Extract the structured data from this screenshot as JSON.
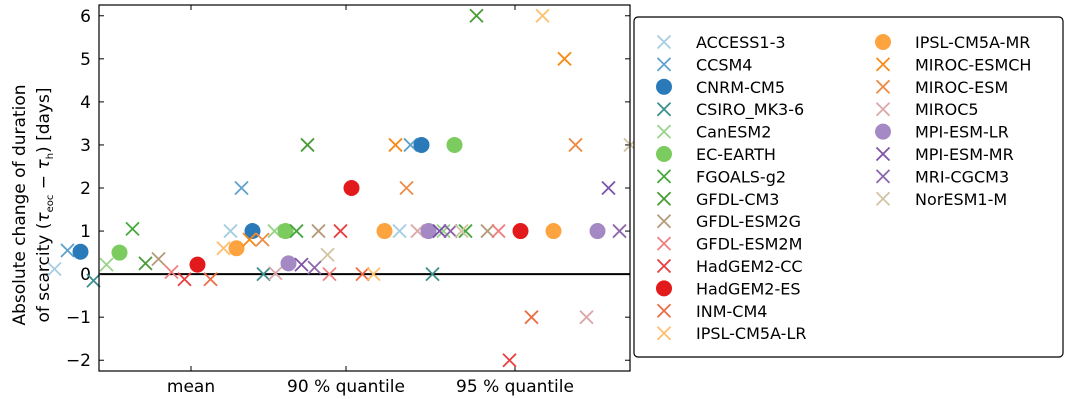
{
  "chart_data": {
    "type": "scatter",
    "title": "",
    "xlabel": "",
    "ylabel_line1": "Absolute change of duration",
    "ylabel_line2_prefix": "of scarcity (",
    "ylabel_tau": "τ",
    "ylabel_sub_eoc": "eoc",
    "ylabel_minus": " − ",
    "ylabel_sub_h": "h",
    "ylabel_line2_suffix": ") [days]",
    "categories": [
      "mean",
      "90 % quantile",
      "95 % quantile"
    ],
    "ylim": [
      -2.25,
      6.25
    ],
    "yticks": [
      "−2",
      "−1",
      "0",
      "1",
      "2",
      "3",
      "4",
      "5",
      "6"
    ],
    "ytick_values": [
      -2,
      -1,
      0,
      1,
      2,
      3,
      4,
      5,
      6
    ],
    "zero_line": 0,
    "grid": false,
    "legend_placement": "right",
    "series": [
      {
        "name": "ACCESS1-3",
        "color": "#a6cee3",
        "marker": "x",
        "values": [
          0.12,
          1.0,
          1.0
        ]
      },
      {
        "name": "CCSM4",
        "color": "#5fa2cc",
        "marker": "x",
        "values": [
          0.55,
          2.0,
          3.0
        ]
      },
      {
        "name": "CNRM-CM5",
        "color": "#2a7ab9",
        "marker": "o",
        "values": [
          0.52,
          1.0,
          3.0
        ]
      },
      {
        "name": "CSIRO_MK3-6",
        "color": "#3d8e8e",
        "marker": "x",
        "values": [
          -0.15,
          0.0,
          0.0
        ]
      },
      {
        "name": "CanESM2",
        "color": "#9ad48b",
        "marker": "x",
        "values": [
          0.22,
          1.0,
          1.0
        ]
      },
      {
        "name": "EC-EARTH",
        "color": "#7ccb5f",
        "marker": "o",
        "values": [
          0.5,
          1.0,
          3.0
        ]
      },
      {
        "name": "FGOALS-g2",
        "color": "#45a83c",
        "marker": "x",
        "values": [
          1.05,
          1.0,
          1.0
        ]
      },
      {
        "name": "GFDL-CM3",
        "color": "#4b9a38",
        "marker": "x",
        "values": [
          0.25,
          3.0,
          6.0
        ]
      },
      {
        "name": "GFDL-ESM2G",
        "color": "#b59a7b",
        "marker": "x",
        "values": [
          0.35,
          1.0,
          1.0
        ]
      },
      {
        "name": "GFDL-ESM2M",
        "color": "#f08080",
        "marker": "x",
        "values": [
          0.05,
          0.0,
          1.0
        ]
      },
      {
        "name": "HadGEM2-CC",
        "color": "#e84040",
        "marker": "x",
        "values": [
          -0.12,
          1.0,
          -2.0
        ]
      },
      {
        "name": "HadGEM2-ES",
        "color": "#e31a1c",
        "marker": "o",
        "values": [
          0.22,
          2.0,
          1.0
        ]
      },
      {
        "name": "INM-CM4",
        "color": "#ec6e45",
        "marker": "x",
        "values": [
          -0.12,
          0.0,
          -1.0
        ]
      },
      {
        "name": "IPSL-CM5A-LR",
        "color": "#fdbf6f",
        "marker": "x",
        "values": [
          0.6,
          0.0,
          6.0
        ]
      },
      {
        "name": "IPSL-CM5A-MR",
        "color": "#fda440",
        "marker": "o",
        "values": [
          0.6,
          1.0,
          1.0
        ]
      },
      {
        "name": "MIROC-ESMCH",
        "color": "#f88a18",
        "marker": "x",
        "values": [
          0.8,
          3.0,
          5.0
        ]
      },
      {
        "name": "MIROC-ESM",
        "color": "#ef8a45",
        "marker": "x",
        "values": [
          0.8,
          2.0,
          3.0
        ]
      },
      {
        "name": "MIROC5",
        "color": "#dba9a9",
        "marker": "x",
        "values": [
          0.02,
          1.0,
          -1.0
        ]
      },
      {
        "name": "MPI-ESM-LR",
        "color": "#a489c4",
        "marker": "o",
        "values": [
          0.25,
          1.0,
          1.0
        ]
      },
      {
        "name": "MPI-ESM-MR",
        "color": "#7d54a8",
        "marker": "x",
        "values": [
          0.22,
          1.0,
          2.0
        ]
      },
      {
        "name": "MRI-CGCM3",
        "color": "#8c67ab",
        "marker": "x",
        "values": [
          0.15,
          1.0,
          1.0
        ]
      },
      {
        "name": "NorESM1-M",
        "color": "#d2c4a4",
        "marker": "x",
        "values": [
          0.45,
          1.0,
          3.0
        ]
      }
    ]
  }
}
